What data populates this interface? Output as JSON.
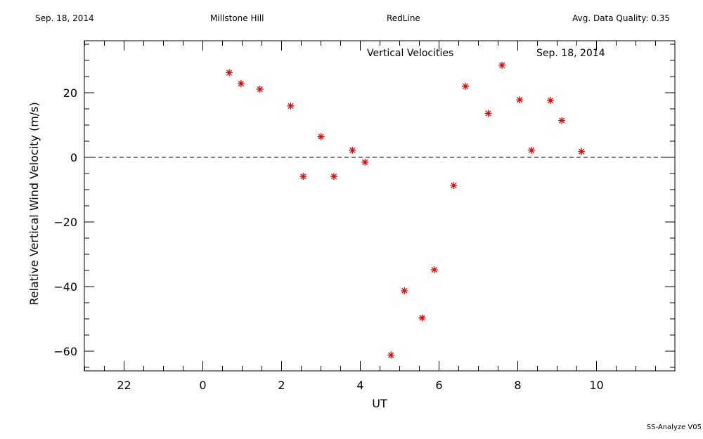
{
  "header": {
    "date": "Sep. 18, 2014",
    "site": "Millstone Hill",
    "instrument": "RedLine",
    "quality": "Avg. Data Quality: 0.35"
  },
  "footer": {
    "version": "SS-Analyze V05"
  },
  "colors": {
    "points": "#e00000",
    "axes": "#000000",
    "zero_line": "#000000"
  },
  "chart_data": {
    "type": "scatter",
    "title": "Vertical Velocities",
    "subtitle": "Sep. 18, 2014",
    "xlabel": "UT",
    "ylabel": "Relative Vertical Wind Velocity (m/s)",
    "xlim": [
      -24,
      11.5
    ],
    "ylim": [
      -66,
      38
    ],
    "x_ticks": [
      22,
      0,
      2,
      4,
      6,
      8,
      10
    ],
    "x_tick_positions": [
      -2,
      0,
      2,
      4,
      6,
      8,
      10
    ],
    "y_ticks": [
      20,
      0,
      -20,
      -40,
      -60
    ],
    "zero_line": true,
    "marker": "asterisk",
    "series": [
      {
        "x": [
          0.67,
          0.97,
          1.45,
          2.23,
          2.55,
          3.0,
          3.33,
          3.8,
          4.12,
          4.78,
          5.12,
          5.57,
          5.88,
          6.37,
          6.67,
          7.25,
          7.6,
          8.05,
          8.35,
          8.83,
          9.12,
          9.62
        ],
        "y": [
          26.2,
          22.8,
          21.1,
          15.9,
          -5.9,
          6.4,
          -5.9,
          2.2,
          -1.5,
          -61.2,
          -41.3,
          -49.7,
          -34.8,
          -8.7,
          22.0,
          13.6,
          28.5,
          17.8,
          2.2,
          17.6,
          11.4,
          1.8
        ]
      }
    ]
  }
}
